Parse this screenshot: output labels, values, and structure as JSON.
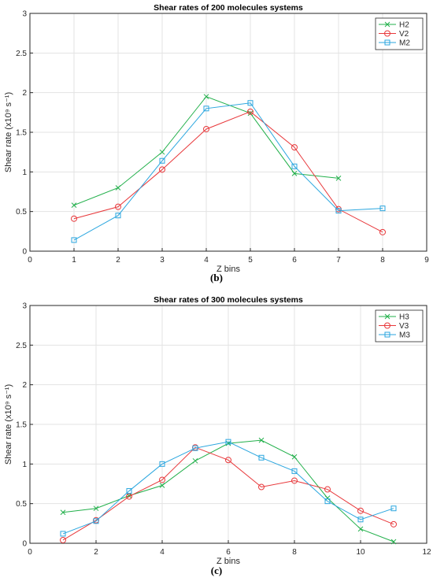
{
  "chart_data": [
    {
      "type": "line",
      "title": "Shear rates of 200 molecules systems",
      "xlabel": "Z bins",
      "ylabel": "Shear  rate  (x10⁹ s⁻¹)",
      "xlim": [
        0,
        9
      ],
      "ylim": [
        0,
        3
      ],
      "xticks": [
        "0",
        "1",
        "2",
        "3",
        "4",
        "5",
        "6",
        "7",
        "8",
        "9"
      ],
      "yticks": [
        "0",
        "0.5",
        "1",
        "1.5",
        "2",
        "2.5",
        "3"
      ],
      "grid": true,
      "legend_position": "top-right",
      "caption": "(b)",
      "series": [
        {
          "name": "H2",
          "color": "#22b04b",
          "marker": "x",
          "x": [
            1,
            2,
            3,
            4,
            5,
            6,
            7
          ],
          "y": [
            0.58,
            0.8,
            1.25,
            1.95,
            1.74,
            0.98,
            0.92
          ]
        },
        {
          "name": "V2",
          "color": "#e8383b",
          "marker": "circle",
          "x": [
            1,
            2,
            3,
            4,
            5,
            6,
            7,
            8
          ],
          "y": [
            0.41,
            0.56,
            1.03,
            1.54,
            1.76,
            1.31,
            0.53,
            0.24
          ]
        },
        {
          "name": "M2",
          "color": "#2aa6df",
          "marker": "square",
          "x": [
            1,
            2,
            3,
            4,
            5,
            6,
            7,
            8
          ],
          "y": [
            0.14,
            0.45,
            1.14,
            1.8,
            1.87,
            1.07,
            0.51,
            0.54
          ]
        }
      ]
    },
    {
      "type": "line",
      "title": "Shear rates of 300 molecules systems",
      "xlabel": "Z bins",
      "ylabel": "Shear  rate  (x10⁹ s⁻¹)",
      "xlim": [
        0,
        12
      ],
      "ylim": [
        0,
        3
      ],
      "xticks": [
        "0",
        "2",
        "4",
        "6",
        "8",
        "10",
        "12"
      ],
      "yticks": [
        "0",
        "0.5",
        "1",
        "1.5",
        "2",
        "2.5",
        "3"
      ],
      "grid": true,
      "legend_position": "top-right",
      "caption": "(c)",
      "series": [
        {
          "name": "H3",
          "color": "#22b04b",
          "marker": "x",
          "x": [
            1,
            2,
            3,
            4,
            5,
            6,
            7,
            8,
            9,
            10,
            11
          ],
          "y": [
            0.39,
            0.44,
            0.6,
            0.73,
            1.04,
            1.26,
            1.3,
            1.09,
            0.57,
            0.18,
            0.02
          ]
        },
        {
          "name": "V3",
          "color": "#e8383b",
          "marker": "circle",
          "x": [
            1,
            2,
            3,
            4,
            5,
            6,
            7,
            8,
            9,
            10,
            11
          ],
          "y": [
            0.04,
            0.29,
            0.59,
            0.8,
            1.21,
            1.05,
            0.71,
            0.79,
            0.68,
            0.41,
            0.24
          ]
        },
        {
          "name": "M3",
          "color": "#2aa6df",
          "marker": "square",
          "x": [
            1,
            2,
            3,
            4,
            5,
            6,
            7,
            8,
            9,
            10,
            11
          ],
          "y": [
            0.12,
            0.28,
            0.66,
            1.0,
            1.2,
            1.28,
            1.08,
            0.91,
            0.53,
            0.3,
            0.44
          ]
        }
      ]
    }
  ]
}
